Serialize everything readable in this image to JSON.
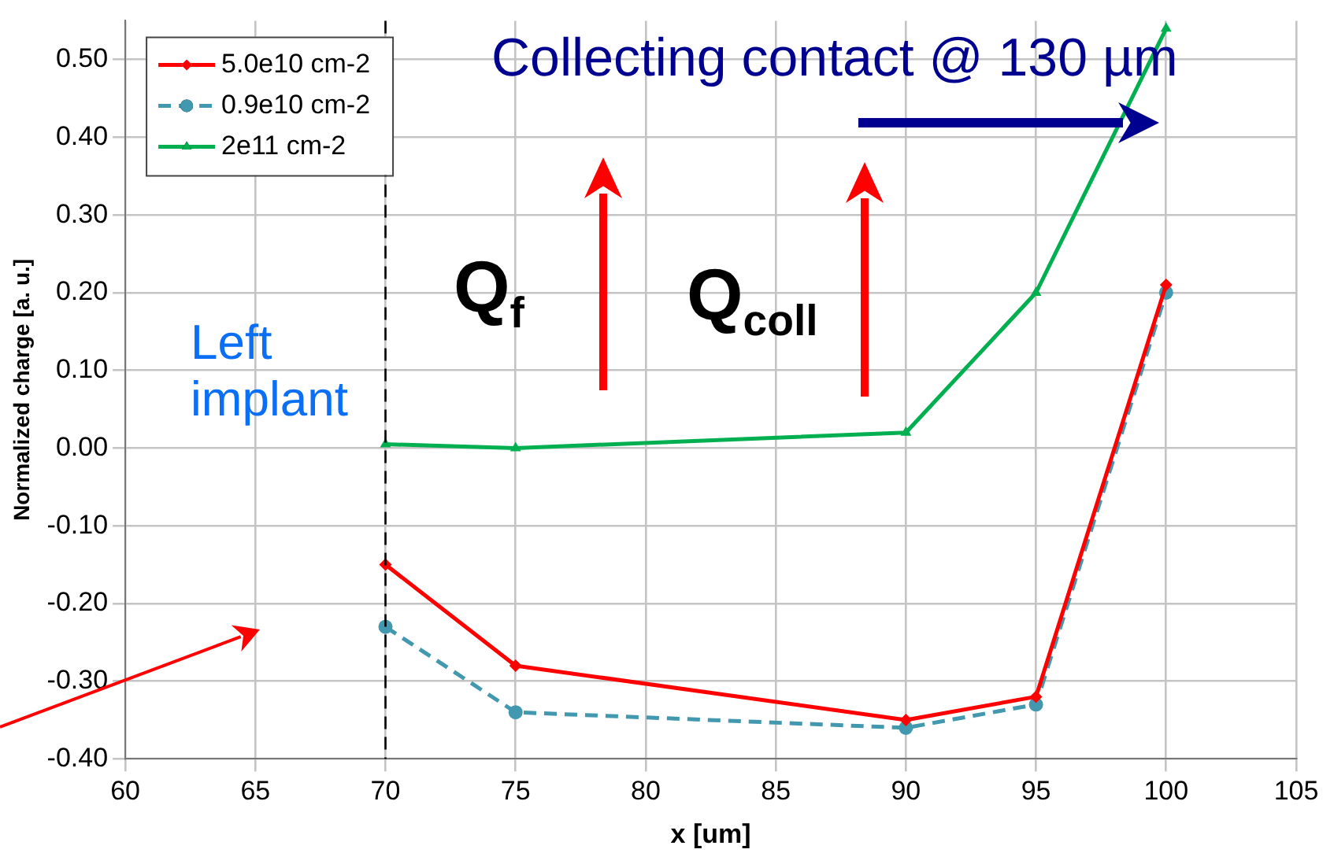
{
  "chart_data": {
    "type": "line",
    "xlabel": "x [um]",
    "ylabel": "Normalized charge [a. u.]",
    "x": [
      70,
      75,
      90,
      95,
      100
    ],
    "series": [
      {
        "name": "5.0e10 cm-2",
        "color": "#ff0000",
        "marker": "diamond",
        "line_style": "solid",
        "values": [
          -0.15,
          -0.28,
          -0.35,
          -0.32,
          0.21
        ]
      },
      {
        "name": "0.9e10 cm-2",
        "color": "#4198af",
        "marker": "circle",
        "line_style": "dashed",
        "values": [
          -0.23,
          -0.34,
          -0.36,
          -0.33,
          0.2
        ]
      },
      {
        "name": "2e11 cm-2",
        "color": "#00b050",
        "marker": "triangle",
        "line_style": "solid",
        "values": [
          0.005,
          0,
          0.02,
          0.2,
          0.54
        ]
      }
    ],
    "xlim": [
      60,
      105
    ],
    "xticks": [
      60,
      65,
      70,
      75,
      80,
      85,
      90,
      95,
      100,
      105
    ],
    "ylim": [
      -0.4,
      0.55
    ],
    "yticks": [
      {
        "value": -0.4,
        "label": "-0.40"
      },
      {
        "value": -0.3,
        "label": "-0.30"
      },
      {
        "value": -0.2,
        "label": "-0.20"
      },
      {
        "value": -0.1,
        "label": "-0.10"
      },
      {
        "value": 0,
        "label": "0.00"
      },
      {
        "value": 0.1,
        "label": "0.10"
      },
      {
        "value": 0.2,
        "label": "0.20"
      },
      {
        "value": 0.3,
        "label": "0.30"
      },
      {
        "value": 0.4,
        "label": "0.40"
      },
      {
        "value": 0.5,
        "label": "0.50"
      }
    ],
    "ref_lines": [
      {
        "axis": "x",
        "value": 70,
        "color": "#000000",
        "line_style": "dashed"
      }
    ],
    "annotations": [
      "Collecting contact @ 130 µm",
      "Q$_{f}$",
      "Q$_{coll}$",
      "Left\nimplant"
    ],
    "grid": true,
    "legend": "top left"
  }
}
